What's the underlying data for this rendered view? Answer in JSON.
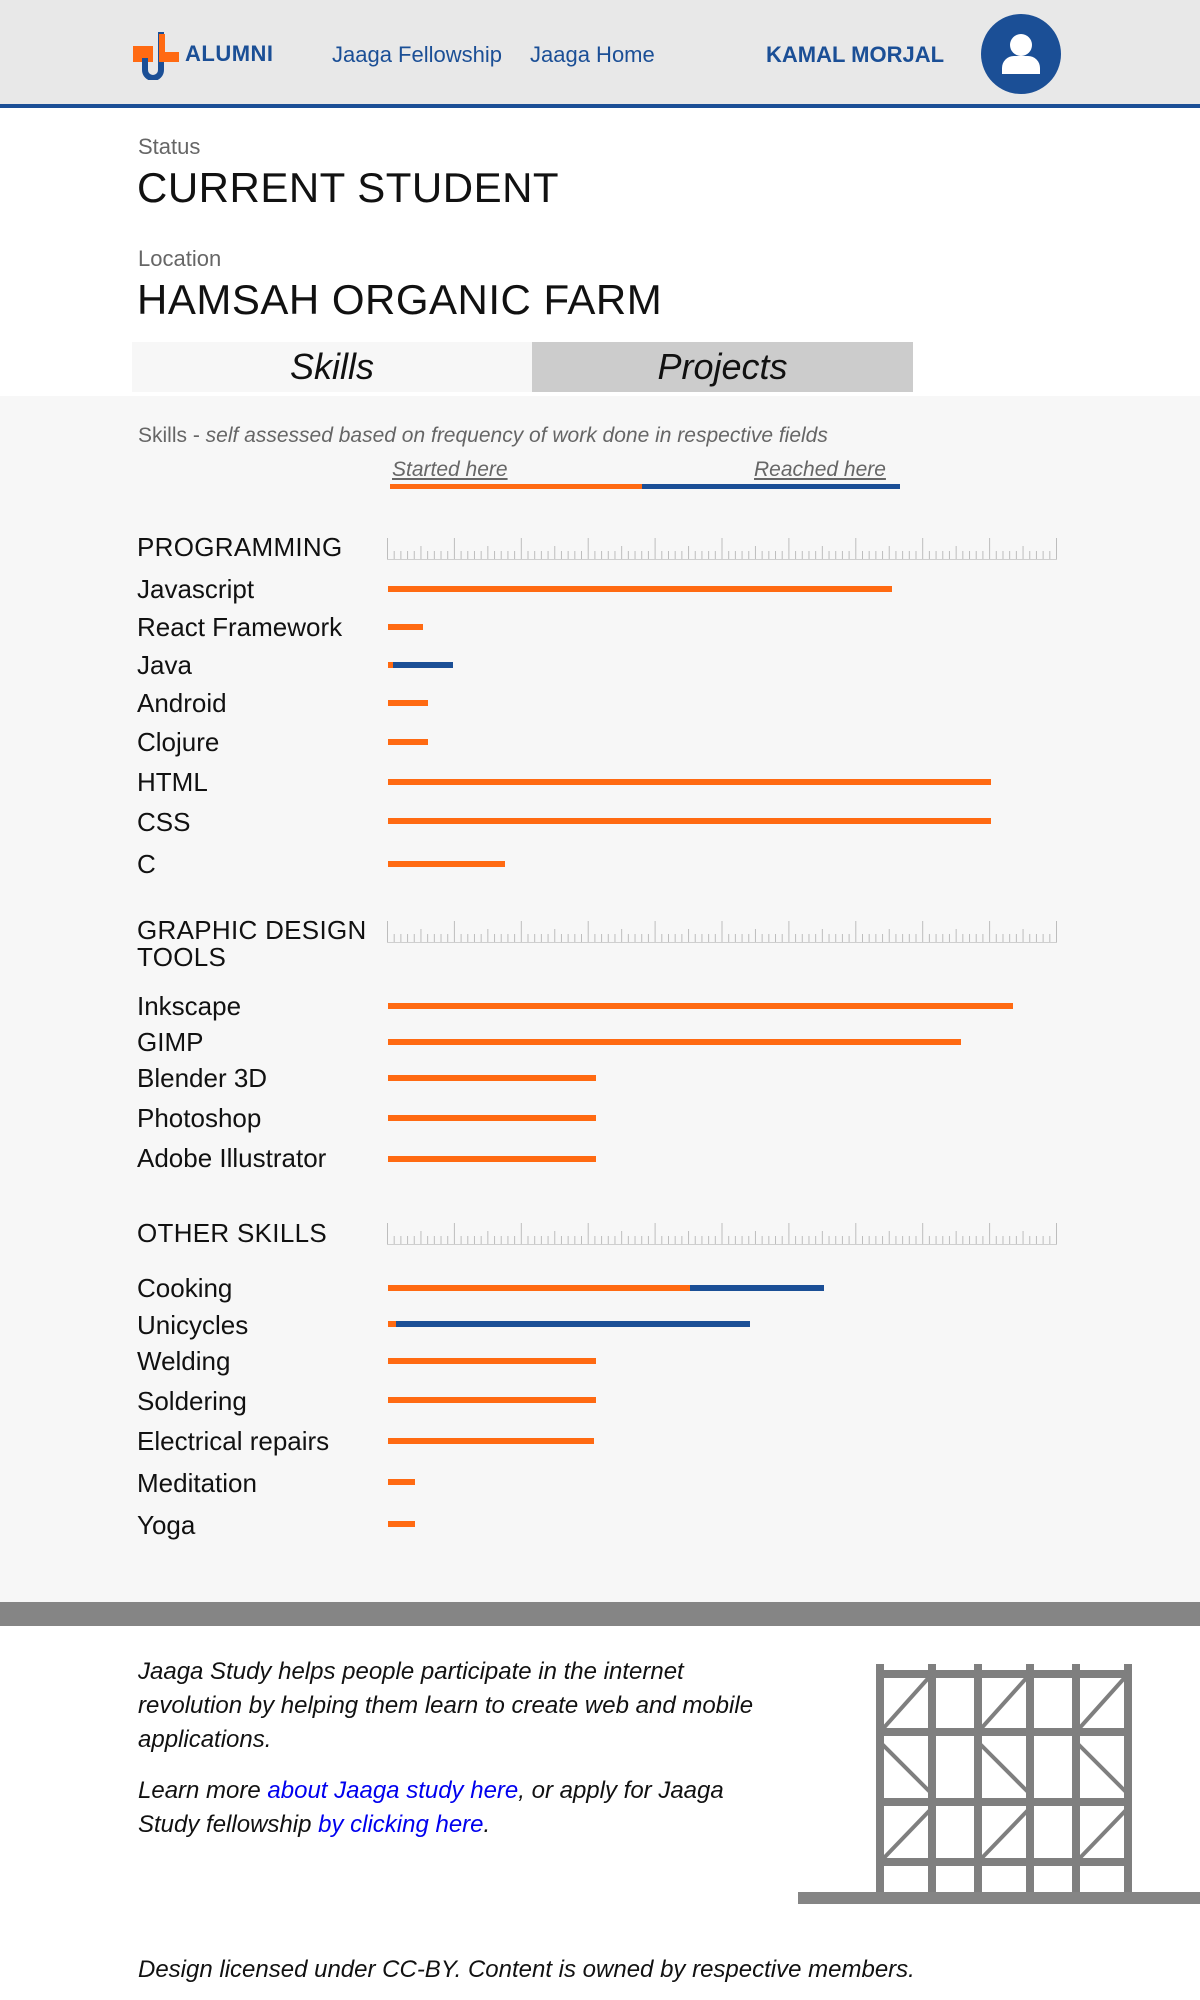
{
  "header": {
    "logo_text": "ALUMNI",
    "nav": [
      {
        "label": "Jaaga Fellowship"
      },
      {
        "label": "Jaaga Home"
      }
    ],
    "user_name": "KAMAL MORJAL",
    "icons": {
      "logo": "jaaga-logo-icon",
      "avatar": "user-avatar-icon"
    }
  },
  "profile": {
    "status_label": "Status",
    "status_value": "CURRENT STUDENT",
    "location_label": "Location",
    "location_value": "HAMSAH ORGANIC FARM"
  },
  "tabs": [
    {
      "label": "Skills",
      "active": true
    },
    {
      "label": "Projects",
      "active": false
    }
  ],
  "skills": {
    "description_prefix": "Skills - ",
    "description_italic": "self assessed based on frequency of work done in respective fields",
    "legend": {
      "started": "Started here",
      "reached": "Reached here",
      "started_color": "#ff6a12",
      "reached_color": "#1b4f96"
    },
    "categories": [
      {
        "name": "PROGRAMMING",
        "items": [
          {
            "name": "Javascript",
            "started": 0.752,
            "reached": 0.752
          },
          {
            "name": "React Framework",
            "started": 0.052,
            "reached": 0.052
          },
          {
            "name": "Java",
            "started": 0.008,
            "reached": 0.097
          },
          {
            "name": "Android",
            "started": 0.06,
            "reached": 0.06
          },
          {
            "name": "Clojure",
            "started": 0.06,
            "reached": 0.06
          },
          {
            "name": "HTML",
            "started": 0.9,
            "reached": 0.9
          },
          {
            "name": "CSS",
            "started": 0.9,
            "reached": 0.9
          },
          {
            "name": "C",
            "started": 0.175,
            "reached": 0.175
          }
        ]
      },
      {
        "name": "GRAPHIC DESIGN TOOLS",
        "items": [
          {
            "name": "Inkscape",
            "started": 0.933,
            "reached": 0.933
          },
          {
            "name": "GIMP",
            "started": 0.855,
            "reached": 0.855
          },
          {
            "name": "Blender 3D",
            "started": 0.31,
            "reached": 0.31
          },
          {
            "name": "Photoshop",
            "started": 0.31,
            "reached": 0.31
          },
          {
            "name": "Adobe Illustrator",
            "started": 0.31,
            "reached": 0.31
          }
        ]
      },
      {
        "name": "OTHER SKILLS",
        "items": [
          {
            "name": "Cooking",
            "started": 0.45,
            "reached": 0.65
          },
          {
            "name": "Unicycles",
            "started": 0.012,
            "reached": 0.54
          },
          {
            "name": "Welding",
            "started": 0.31,
            "reached": 0.31
          },
          {
            "name": "Soldering",
            "started": 0.31,
            "reached": 0.31
          },
          {
            "name": "Electrical repairs",
            "started": 0.307,
            "reached": 0.307
          },
          {
            "name": "Meditation",
            "started": 0.04,
            "reached": 0.04
          },
          {
            "name": "Yoga",
            "started": 0.04,
            "reached": 0.04
          }
        ]
      }
    ]
  },
  "footer": {
    "para1": "Jaaga Study helps people participate in the internet revolution by helping them learn to create web and mobile applications.",
    "para2_before": "Learn more ",
    "para2_link1": "about Jaaga study here",
    "para2_middle": ", or apply for Jaaga Study fellowship ",
    "para2_link2": "by clicking here",
    "para2_after": ".",
    "license": "Design licensed under CC-BY. Content is owned by respective members.",
    "icons": {
      "art": "scaffold-structure-icon"
    }
  }
}
